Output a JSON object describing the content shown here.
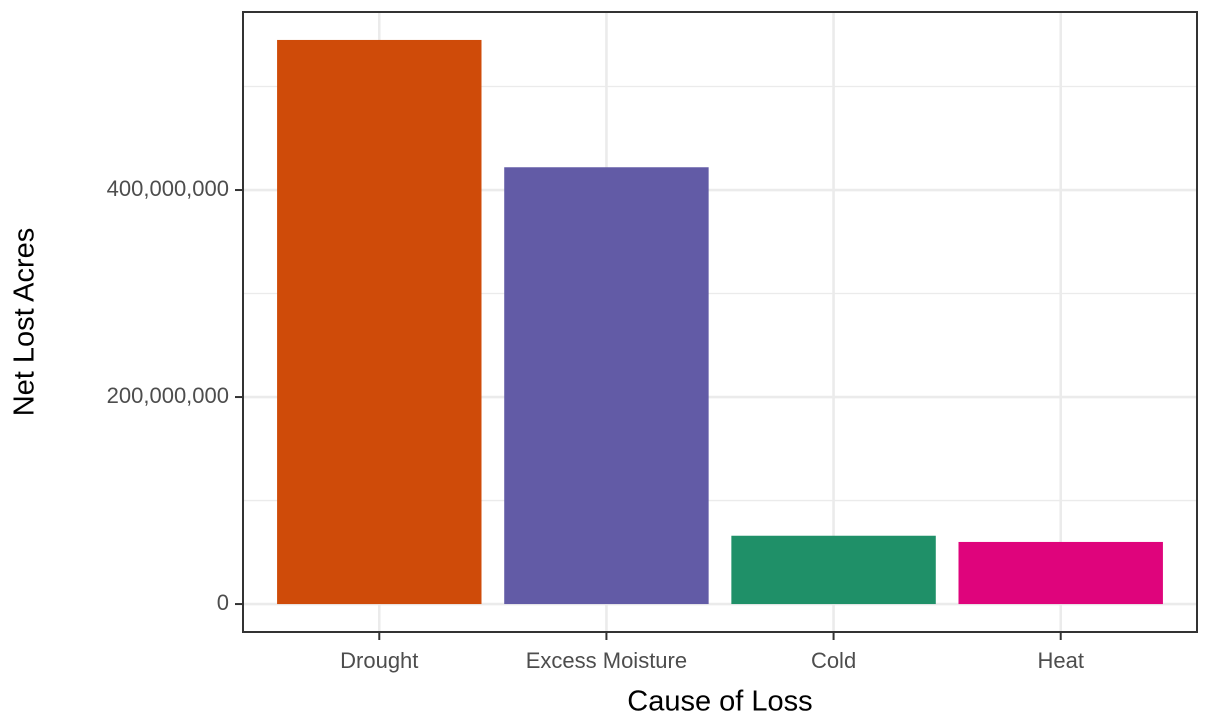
{
  "chart_data": {
    "type": "bar",
    "categories": [
      "Drought",
      "Excess Moisture",
      "Cold",
      "Heat"
    ],
    "values": [
      545000000,
      422000000,
      66000000,
      60000000
    ],
    "colors": [
      "#cf4b09",
      "#625ba6",
      "#1f9068",
      "#df047c"
    ],
    "xlabel": "Cause of Loss",
    "ylabel": "Net Lost Acres",
    "ylim": [
      -27000000,
      572000000
    ],
    "yticks": [
      0,
      {
        "value": 200000000,
        "label": "200,000,000"
      },
      {
        "value": 400000000,
        "label": "400,000,000"
      }
    ],
    "minor_yticks": [
      100000000,
      300000000,
      500000000
    ],
    "grid": true
  }
}
